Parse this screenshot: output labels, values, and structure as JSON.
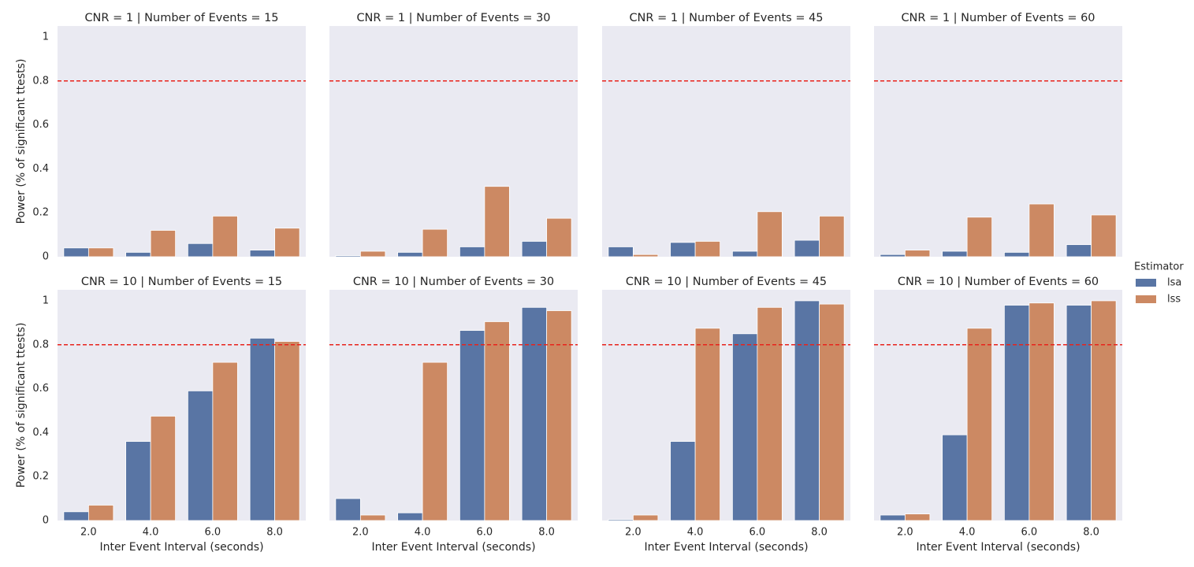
{
  "chart_data": [
    {
      "type": "bar",
      "title": "CNR = 1 | Number of Events = 15",
      "y_label": "Power (% of significant ttests)",
      "categories": [
        null,
        null,
        null,
        null
      ],
      "series": [
        {
          "name": "lsa",
          "color": "#5975a4",
          "values": [
            0.04,
            0.02,
            0.06,
            0.03
          ]
        },
        {
          "name": "lss",
          "color": "#cc8963",
          "values": [
            0.04,
            0.12,
            0.185,
            0.13
          ]
        }
      ],
      "ylim": [
        0,
        1.05
      ],
      "yticks": [
        0.0,
        0.2,
        0.4,
        0.6,
        0.8,
        1.0
      ],
      "reference_line": 0.8,
      "legend_title": "Estimator"
    },
    {
      "type": "bar",
      "title": "CNR = 1 | Number of Events = 30",
      "categories": [
        null,
        null,
        null,
        null
      ],
      "series": [
        {
          "name": "lsa",
          "color": "#5975a4",
          "values": [
            0.005,
            0.02,
            0.045,
            0.07
          ]
        },
        {
          "name": "lss",
          "color": "#cc8963",
          "values": [
            0.025,
            0.125,
            0.32,
            0.175
          ]
        }
      ],
      "ylim": [
        0,
        1.05
      ],
      "reference_line": 0.8
    },
    {
      "type": "bar",
      "title": "CNR = 1 | Number of Events = 45",
      "categories": [
        null,
        null,
        null,
        null
      ],
      "series": [
        {
          "name": "lsa",
          "color": "#5975a4",
          "values": [
            0.045,
            0.065,
            0.025,
            0.075
          ]
        },
        {
          "name": "lss",
          "color": "#cc8963",
          "values": [
            0.01,
            0.07,
            0.205,
            0.185
          ]
        }
      ],
      "ylim": [
        0,
        1.05
      ],
      "reference_line": 0.8
    },
    {
      "type": "bar",
      "title": "CNR = 1 | Number of Events = 60",
      "categories": [
        null,
        null,
        null,
        null
      ],
      "series": [
        {
          "name": "lsa",
          "color": "#5975a4",
          "values": [
            0.01,
            0.025,
            0.02,
            0.055
          ]
        },
        {
          "name": "lss",
          "color": "#cc8963",
          "values": [
            0.03,
            0.18,
            0.24,
            0.19
          ]
        }
      ],
      "ylim": [
        0,
        1.05
      ],
      "reference_line": 0.8
    },
    {
      "type": "bar",
      "title": "CNR = 10 | Number of Events = 15",
      "y_label": "Power (% of significant ttests)",
      "x_label": "Inter Event Interval (seconds)",
      "categories": [
        "2.0",
        "4.0",
        "6.0",
        "8.0"
      ],
      "series": [
        {
          "name": "lsa",
          "color": "#5975a4",
          "values": [
            0.04,
            0.36,
            0.59,
            0.83
          ]
        },
        {
          "name": "lss",
          "color": "#cc8963",
          "values": [
            0.07,
            0.475,
            0.72,
            0.815
          ]
        }
      ],
      "ylim": [
        0,
        1.05
      ],
      "yticks": [
        0.0,
        0.2,
        0.4,
        0.6,
        0.8,
        1.0
      ],
      "reference_line": 0.8
    },
    {
      "type": "bar",
      "title": "CNR = 10 | Number of Events = 30",
      "x_label": "Inter Event Interval (seconds)",
      "categories": [
        "2.0",
        "4.0",
        "6.0",
        "8.0"
      ],
      "series": [
        {
          "name": "lsa",
          "color": "#5975a4",
          "values": [
            0.1,
            0.035,
            0.865,
            0.97
          ]
        },
        {
          "name": "lss",
          "color": "#cc8963",
          "values": [
            0.025,
            0.72,
            0.905,
            0.955
          ]
        }
      ],
      "ylim": [
        0,
        1.05
      ],
      "reference_line": 0.8
    },
    {
      "type": "bar",
      "title": "CNR = 10 | Number of Events = 45",
      "x_label": "Inter Event Interval (seconds)",
      "categories": [
        "2.0",
        "4.0",
        "6.0",
        "8.0"
      ],
      "series": [
        {
          "name": "lsa",
          "color": "#5975a4",
          "values": [
            0.005,
            0.36,
            0.85,
            1.0
          ]
        },
        {
          "name": "lss",
          "color": "#cc8963",
          "values": [
            0.025,
            0.875,
            0.97,
            0.985
          ]
        }
      ],
      "ylim": [
        0,
        1.05
      ],
      "reference_line": 0.8
    },
    {
      "type": "bar",
      "title": "CNR = 10 | Number of Events = 60",
      "x_label": "Inter Event Interval (seconds)",
      "categories": [
        "2.0",
        "4.0",
        "6.0",
        "8.0"
      ],
      "series": [
        {
          "name": "lsa",
          "color": "#5975a4",
          "values": [
            0.025,
            0.39,
            0.98,
            0.98
          ]
        },
        {
          "name": "lss",
          "color": "#cc8963",
          "values": [
            0.03,
            0.875,
            0.99,
            1.0
          ]
        }
      ],
      "ylim": [
        0,
        1.05
      ],
      "reference_line": 0.8
    }
  ]
}
